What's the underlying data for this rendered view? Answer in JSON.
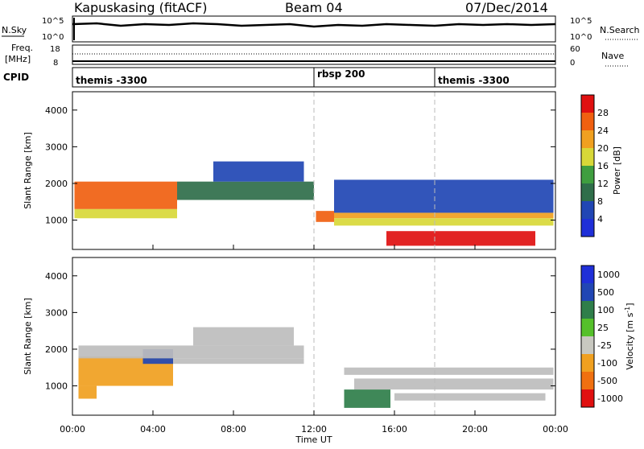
{
  "header": {
    "station": "Kapuskasing (fitACF)",
    "beam": "Beam 04",
    "date": "07/Dec/2014"
  },
  "top_panels": {
    "nsky_label": "N.Sky",
    "nsky_ticks": [
      "10^5",
      "10^0"
    ],
    "nsearch_label": "N.Search",
    "nsearch_ticks": [
      "10^5",
      "10^0"
    ],
    "freq_label": "Freq.",
    "freq_unit": "[MHz]",
    "freq_ticks": [
      "18",
      "8"
    ],
    "nave_label": "Nave",
    "nave_ticks": [
      "60",
      "0"
    ],
    "cpid_label": "CPID",
    "cpid_segments": [
      {
        "label": "themis -3300",
        "start_hour": 0,
        "end_hour": 12
      },
      {
        "label": "rbsp 200",
        "start_hour": 12,
        "end_hour": 18
      },
      {
        "label": "themis -3300",
        "start_hour": 18,
        "end_hour": 24
      }
    ]
  },
  "colors": {
    "power": [
      "#1f2fd8",
      "#2146b4",
      "#2f6e4a",
      "#3f9e3f",
      "#d8d838",
      "#f0a020",
      "#f06010",
      "#e01010"
    ],
    "velocity": [
      "#1f2fd8",
      "#2146b4",
      "#2f7e4a",
      "#55c02a",
      "#c8c8c0",
      "#f0a020",
      "#f07010",
      "#e01010"
    ],
    "grey": "#bdbdbd"
  },
  "chart_data": [
    {
      "type": "heatmap",
      "title": "",
      "xlabel": "",
      "ylabel": "Slant Range [km]",
      "xlim": [
        0,
        24
      ],
      "ylim": [
        200,
        4500
      ],
      "x_ticks": [
        "00:00",
        "04:00",
        "08:00",
        "12:00",
        "16:00",
        "20:00",
        "00:00"
      ],
      "y_ticks": [
        1000,
        2000,
        3000,
        4000
      ],
      "colorbar_label": "Power [dB]",
      "colorbar_ticks": [
        "4",
        "8",
        "12",
        "16",
        "20",
        "24",
        "28"
      ],
      "colorbar_levels": [
        0,
        4,
        8,
        12,
        16,
        20,
        24,
        28,
        32
      ],
      "regions": [
        {
          "x": [
            0.1,
            5.2
          ],
          "y": [
            1300,
            2050
          ],
          "value": 26
        },
        {
          "x": [
            0.1,
            5.2
          ],
          "y": [
            1050,
            1300
          ],
          "value": 18
        },
        {
          "x": [
            5.2,
            12.0
          ],
          "y": [
            1550,
            2050
          ],
          "value": 10
        },
        {
          "x": [
            7.0,
            11.5
          ],
          "y": [
            2050,
            2600
          ],
          "value": 5
        },
        {
          "x": [
            12.1,
            13.0
          ],
          "y": [
            950,
            1250
          ],
          "value": 24
        },
        {
          "x": [
            13.0,
            23.9
          ],
          "y": [
            1050,
            1200
          ],
          "value": 22
        },
        {
          "x": [
            13.0,
            23.9
          ],
          "y": [
            850,
            1050
          ],
          "value": 18
        },
        {
          "x": [
            13.0,
            23.9
          ],
          "y": [
            1200,
            2100
          ],
          "value": 6
        },
        {
          "x": [
            15.6,
            23.0
          ],
          "y": [
            300,
            700
          ],
          "value": 30
        }
      ]
    },
    {
      "type": "heatmap",
      "title": "",
      "xlabel": "Time UT",
      "ylabel": "Slant Range [km]",
      "xlim": [
        0,
        24
      ],
      "ylim": [
        200,
        4500
      ],
      "x_ticks": [
        "00:00",
        "04:00",
        "08:00",
        "12:00",
        "16:00",
        "20:00",
        "00:00"
      ],
      "y_ticks": [
        1000,
        2000,
        3000,
        4000
      ],
      "colorbar_label": "Velocity [m s^-1]",
      "colorbar_ticks": [
        "1000",
        "500",
        "100",
        "25",
        "-25",
        "-100",
        "-500",
        "-1000"
      ],
      "regions": [
        {
          "x": [
            0.3,
            5.0
          ],
          "y": [
            1000,
            1800
          ],
          "value": -300
        },
        {
          "x": [
            0.3,
            1.2
          ],
          "y": [
            650,
            1000
          ],
          "value": -150
        },
        {
          "x": [
            3.5,
            5.0
          ],
          "y": [
            1600,
            2000
          ],
          "value": 500
        },
        {
          "x": [
            0.3,
            11.5
          ],
          "y": [
            1750,
            2100
          ],
          "value": 0
        },
        {
          "x": [
            5.0,
            11.5
          ],
          "y": [
            1600,
            1750
          ],
          "value": 0
        },
        {
          "x": [
            6.0,
            11.0
          ],
          "y": [
            2100,
            2600
          ],
          "value": 0
        },
        {
          "x": [
            13.5,
            23.9
          ],
          "y": [
            1300,
            1500
          ],
          "value": 0
        },
        {
          "x": [
            14.0,
            23.9
          ],
          "y": [
            900,
            1200
          ],
          "value": 0
        },
        {
          "x": [
            16.0,
            23.5
          ],
          "y": [
            600,
            800
          ],
          "value": 0
        },
        {
          "x": [
            13.5,
            15.8
          ],
          "y": [
            400,
            900
          ],
          "value": 60
        }
      ]
    }
  ],
  "xaxis": {
    "ticks": [
      "00:00",
      "04:00",
      "08:00",
      "12:00",
      "16:00",
      "20:00",
      "00:00"
    ],
    "label": "Time UT"
  }
}
